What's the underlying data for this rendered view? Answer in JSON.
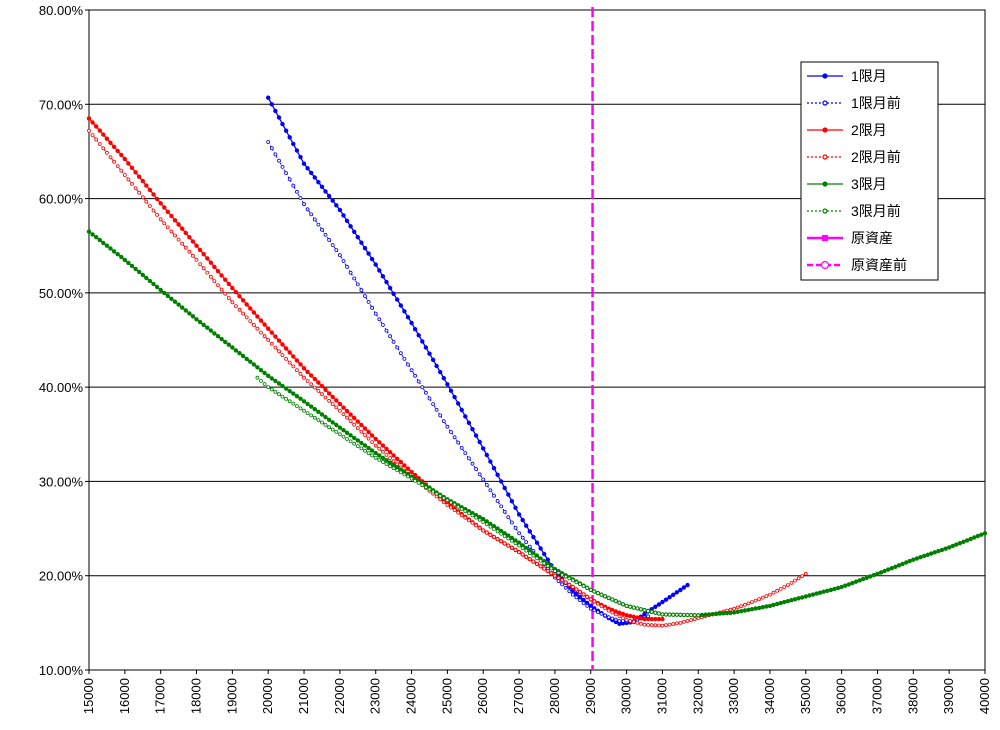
{
  "chart_data": {
    "type": "line",
    "xlim": [
      15000,
      40000
    ],
    "ylim": [
      0.1,
      0.8
    ],
    "x_ticks": [
      15000,
      16000,
      17000,
      18000,
      19000,
      20000,
      21000,
      22000,
      23000,
      24000,
      25000,
      26000,
      27000,
      28000,
      29000,
      30000,
      31000,
      32000,
      33000,
      34000,
      35000,
      36000,
      37000,
      38000,
      39000,
      40000
    ],
    "x_tick_labels": [
      "15000",
      "16000",
      "17000",
      "18000",
      "19000",
      "20000",
      "21000",
      "22000",
      "23000",
      "24000",
      "25000",
      "26000",
      "27000",
      "28000",
      "29000",
      "30000",
      "31000",
      "32000",
      "33000",
      "34000",
      "35000",
      "36000",
      "37000",
      "38000",
      "39000",
      "40000"
    ],
    "y_ticks": [
      0.1,
      0.2,
      0.3,
      0.4,
      0.5,
      0.6,
      0.7,
      0.8
    ],
    "y_tick_labels": [
      "10.00%",
      "20.00%",
      "30.00%",
      "40.00%",
      "50.00%",
      "60.00%",
      "70.00%",
      "80.00%"
    ],
    "grid": "horizontal",
    "legend_position": "top-right",
    "underlying_x": 29050,
    "series": [
      {
        "name": "1限月",
        "color": "#0000ff",
        "style": "solid",
        "marker": "filled",
        "points": [
          [
            20000,
            0.707
          ],
          [
            21000,
            0.637
          ],
          [
            22000,
            0.588
          ],
          [
            23000,
            0.53
          ],
          [
            24000,
            0.468
          ],
          [
            25000,
            0.403
          ],
          [
            26000,
            0.335
          ],
          [
            27000,
            0.265
          ],
          [
            28000,
            0.205
          ],
          [
            28500,
            0.184
          ],
          [
            29000,
            0.168
          ],
          [
            29500,
            0.155
          ],
          [
            29800,
            0.149
          ],
          [
            30200,
            0.151
          ],
          [
            30600,
            0.162
          ],
          [
            31000,
            0.172
          ],
          [
            31500,
            0.185
          ],
          [
            31700,
            0.19
          ]
        ]
      },
      {
        "name": "1限月前",
        "color": "#0000ff",
        "style": "dotted",
        "marker": "hollow",
        "points": [
          [
            20000,
            0.66
          ],
          [
            21000,
            0.594
          ],
          [
            22000,
            0.54
          ],
          [
            23000,
            0.478
          ],
          [
            24000,
            0.418
          ],
          [
            25000,
            0.358
          ],
          [
            26000,
            0.302
          ],
          [
            27000,
            0.245
          ],
          [
            28000,
            0.198
          ],
          [
            28500,
            0.18
          ],
          [
            29000,
            0.165
          ],
          [
            29500,
            0.156
          ],
          [
            29800,
            0.152
          ],
          [
            30200,
            0.152
          ],
          [
            30600,
            0.157
          ]
        ]
      },
      {
        "name": "2限月",
        "color": "#ff0000",
        "style": "solid",
        "marker": "filled",
        "points": [
          [
            15000,
            0.685
          ],
          [
            16000,
            0.642
          ],
          [
            17000,
            0.595
          ],
          [
            18000,
            0.55
          ],
          [
            19000,
            0.505
          ],
          [
            20000,
            0.462
          ],
          [
            21000,
            0.42
          ],
          [
            22000,
            0.382
          ],
          [
            23000,
            0.345
          ],
          [
            24000,
            0.31
          ],
          [
            25000,
            0.277
          ],
          [
            26000,
            0.248
          ],
          [
            27000,
            0.225
          ],
          [
            28000,
            0.2
          ],
          [
            28500,
            0.188
          ],
          [
            29000,
            0.175
          ],
          [
            29500,
            0.165
          ],
          [
            30000,
            0.158
          ],
          [
            30500,
            0.154
          ],
          [
            31000,
            0.154
          ]
        ]
      },
      {
        "name": "2限月前",
        "color": "#ff0000",
        "style": "dotted",
        "marker": "hollow",
        "points": [
          [
            15000,
            0.672
          ],
          [
            16000,
            0.625
          ],
          [
            17000,
            0.578
          ],
          [
            18000,
            0.535
          ],
          [
            19000,
            0.49
          ],
          [
            20000,
            0.45
          ],
          [
            21000,
            0.41
          ],
          [
            22000,
            0.375
          ],
          [
            23000,
            0.338
          ],
          [
            24000,
            0.305
          ],
          [
            25000,
            0.275
          ],
          [
            26000,
            0.248
          ],
          [
            27000,
            0.225
          ],
          [
            28000,
            0.2
          ],
          [
            28500,
            0.188
          ],
          [
            29000,
            0.175
          ],
          [
            29500,
            0.163
          ],
          [
            30000,
            0.153
          ],
          [
            30500,
            0.148
          ],
          [
            31000,
            0.147
          ],
          [
            31500,
            0.15
          ],
          [
            32000,
            0.155
          ],
          [
            32500,
            0.16
          ],
          [
            33000,
            0.165
          ],
          [
            33500,
            0.172
          ],
          [
            34000,
            0.18
          ],
          [
            34500,
            0.19
          ],
          [
            35000,
            0.202
          ]
        ]
      },
      {
        "name": "3限月",
        "color": "#008000",
        "style": "solid",
        "marker": "filled",
        "points": [
          [
            15000,
            0.565
          ],
          [
            16000,
            0.535
          ],
          [
            17000,
            0.503
          ],
          [
            18000,
            0.472
          ],
          [
            19000,
            0.442
          ],
          [
            20000,
            0.412
          ],
          [
            21000,
            0.385
          ],
          [
            22000,
            0.357
          ],
          [
            23000,
            0.33
          ],
          [
            24000,
            0.305
          ],
          [
            25000,
            0.281
          ],
          [
            26000,
            0.26
          ],
          [
            27000,
            0.235
          ],
          [
            28000,
            0.207
          ],
          [
            29000,
            0.185
          ],
          [
            30000,
            0.168
          ],
          [
            31000,
            0.159
          ],
          [
            32000,
            0.158
          ],
          [
            33000,
            0.161
          ],
          [
            34000,
            0.168
          ],
          [
            35000,
            0.178
          ],
          [
            36000,
            0.188
          ],
          [
            37000,
            0.202
          ],
          [
            38000,
            0.217
          ],
          [
            39000,
            0.23
          ],
          [
            40000,
            0.245
          ]
        ]
      },
      {
        "name": "3限月前",
        "color": "#008000",
        "style": "dotted",
        "marker": "hollow",
        "points": [
          [
            19700,
            0.41
          ],
          [
            20000,
            0.4
          ],
          [
            21000,
            0.375
          ],
          [
            22000,
            0.35
          ],
          [
            23000,
            0.325
          ],
          [
            24000,
            0.303
          ],
          [
            25000,
            0.28
          ],
          [
            26000,
            0.257
          ],
          [
            27000,
            0.232
          ],
          [
            28000,
            0.205
          ],
          [
            29000,
            0.185
          ],
          [
            30000,
            0.168
          ],
          [
            31000,
            0.159
          ],
          [
            32000,
            0.158
          ]
        ]
      },
      {
        "name": "原資産",
        "color": "#ff00ff",
        "style": "solid",
        "marker": "square"
      },
      {
        "name": "原資産前",
        "color": "#ff00ff",
        "style": "dashed",
        "marker": "hollow"
      }
    ]
  }
}
